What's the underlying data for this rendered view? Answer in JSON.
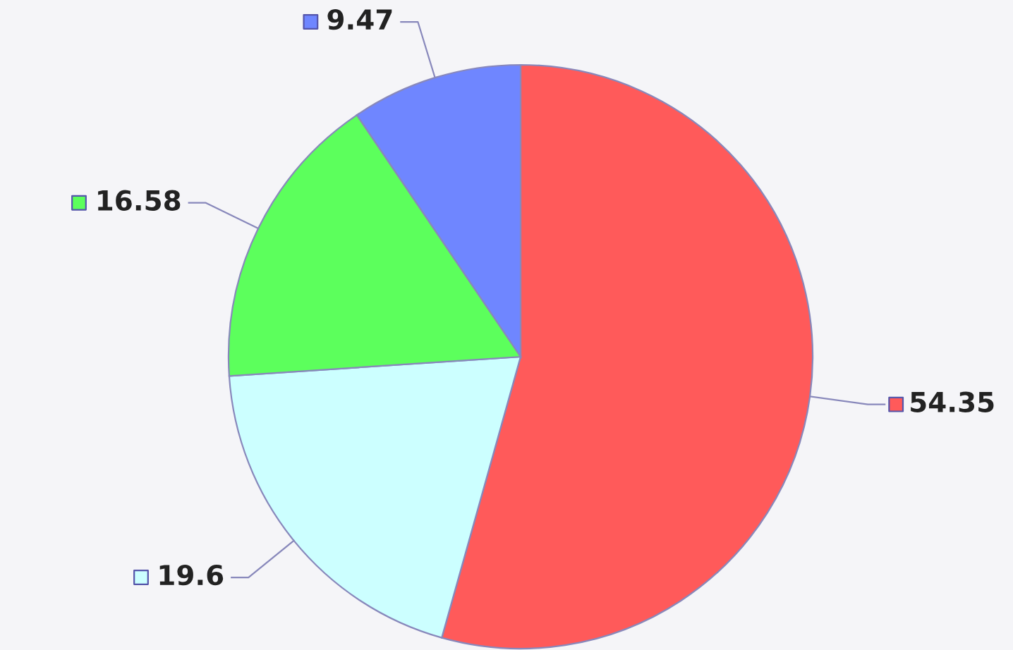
{
  "chart_data": {
    "type": "pie",
    "categories": [
      null,
      null,
      null,
      null
    ],
    "values": [
      54.35,
      19.6,
      16.58,
      9.47
    ],
    "colors": [
      "#ff5a5a",
      "#ccffff",
      "#5cff5c",
      "#6f86ff"
    ],
    "data_labels": true
  }
}
